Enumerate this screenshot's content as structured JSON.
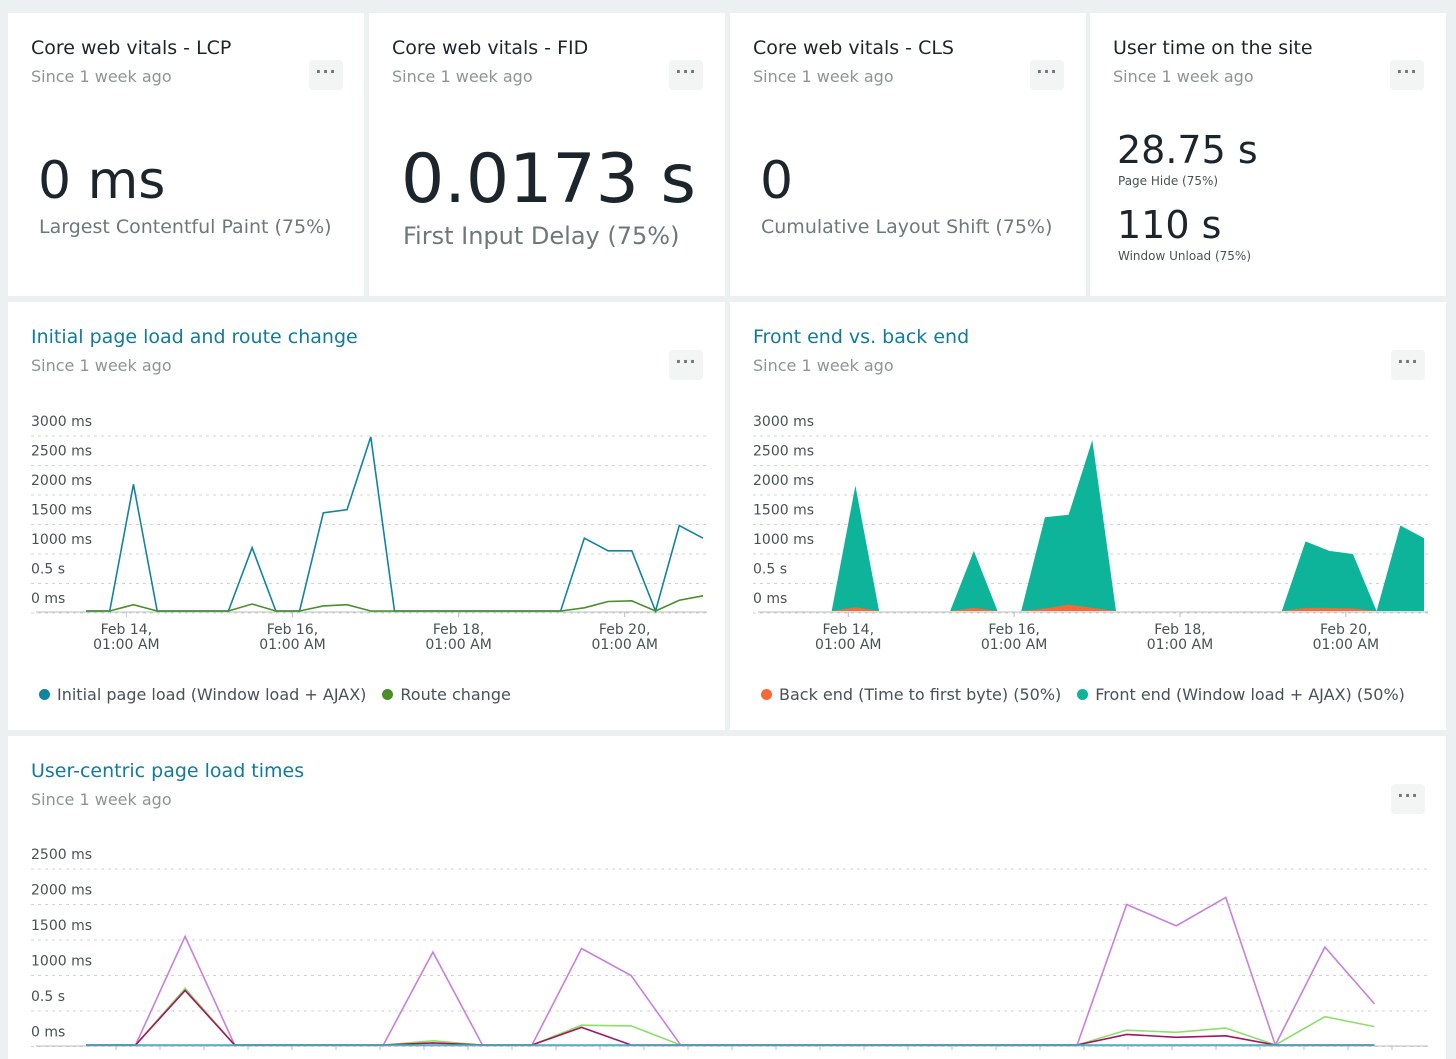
{
  "colors": {
    "title_link": "#0f7b9e",
    "initial_load": "#11849f",
    "route_change": "#4a8f2a",
    "back_end": "#f76937",
    "front_end": "#0eb49a",
    "uc_purple": "#c97fde",
    "uc_green": "#8ce06a",
    "uc_magenta": "#a8125e",
    "uc_teal": "#3aaec2",
    "grid": "#d0d4d5"
  },
  "cards": {
    "lcp": {
      "title": "Core web vitals - LCP",
      "since": "Since 1 week ago",
      "value": "0 ms",
      "label": "Largest Contentful Paint (75%)",
      "menu": "···"
    },
    "fid": {
      "title": "Core web vitals - FID",
      "since": "Since 1 week ago",
      "value": "0.0173 s",
      "label": "First Input Delay (75%)",
      "menu": "···"
    },
    "cls": {
      "title": "Core web vitals - CLS",
      "since": "Since 1 week ago",
      "value": "0",
      "label": "Cumulative Layout Shift (75%)",
      "menu": "···"
    },
    "time": {
      "title": "User time on the site",
      "since": "Since 1 week ago",
      "value1": "28.75 s",
      "label1": "Page Hide (75%)",
      "value2": "110 s",
      "label2": "Window Unload (75%)",
      "menu": "···"
    }
  },
  "panels": {
    "initial": {
      "title": "Initial page load and route change",
      "since": "Since 1 week ago",
      "menu": "···"
    },
    "fevsbe": {
      "title": "Front end vs. back end",
      "since": "Since 1 week ago",
      "menu": "···"
    },
    "usercentric": {
      "title": "User-centric page load times",
      "since": "Since 1 week ago",
      "menu": "···"
    }
  },
  "chart_data": [
    {
      "type": "line",
      "title": "Initial page load and route change",
      "y_ticks": [
        "3000 ms",
        "2500 ms",
        "2000 ms",
        "1500 ms",
        "1000 ms",
        "0.5 s",
        "0 ms"
      ],
      "x_ticks": [
        [
          "Feb 14,",
          "01:00 AM"
        ],
        [
          "Feb 16,",
          "01:00 AM"
        ],
        [
          "Feb 18,",
          "01:00 AM"
        ],
        [
          "Feb 20,",
          "01:00 AM"
        ]
      ],
      "ylim": [
        0,
        3000
      ],
      "x_index_range": [
        0,
        26
      ],
      "x_tick_index": [
        1.7,
        8.7,
        15.7,
        22.7
      ],
      "series": [
        {
          "name": "Initial page load (Window load + AJAX)",
          "color_key": "initial_load",
          "values": [
            0,
            0,
            2000,
            0,
            0,
            0,
            0,
            1000,
            0,
            0,
            1550,
            1600,
            2750,
            0,
            0,
            0,
            0,
            0,
            0,
            0,
            0,
            1150,
            950,
            950,
            0,
            1350,
            1150
          ]
        },
        {
          "name": "Route change",
          "color_key": "route_change",
          "values": [
            0,
            0,
            100,
            0,
            0,
            0,
            0,
            110,
            0,
            0,
            80,
            100,
            0,
            0,
            0,
            0,
            0,
            0,
            0,
            0,
            0,
            50,
            150,
            160,
            0,
            170,
            240
          ]
        }
      ]
    },
    {
      "type": "area",
      "title": "Front end vs. back end",
      "y_ticks": [
        "3000 ms",
        "2500 ms",
        "2000 ms",
        "1500 ms",
        "1000 ms",
        "0.5 s",
        "0 ms"
      ],
      "x_ticks": [
        [
          "Feb 14,",
          "01:00 AM"
        ],
        [
          "Feb 16,",
          "01:00 AM"
        ],
        [
          "Feb 18,",
          "01:00 AM"
        ],
        [
          "Feb 20,",
          "01:00 AM"
        ]
      ],
      "ylim": [
        0,
        3000
      ],
      "x_index_range": [
        0,
        26
      ],
      "x_tick_index": [
        1.7,
        8.7,
        15.7,
        22.7
      ],
      "series": [
        {
          "name": "Back end (Time to first byte) (50%)",
          "color_key": "back_end",
          "values": [
            0,
            0,
            60,
            0,
            0,
            0,
            0,
            50,
            0,
            0,
            40,
            100,
            50,
            0,
            0,
            0,
            0,
            0,
            0,
            0,
            0,
            50,
            50,
            40,
            0,
            0,
            0
          ]
        },
        {
          "name": "Front end (Window load + AJAX) (50%)",
          "color_key": "front_end",
          "values": [
            0,
            0,
            1980,
            0,
            0,
            0,
            0,
            950,
            0,
            0,
            1480,
            1520,
            2700,
            0,
            0,
            0,
            0,
            0,
            0,
            0,
            0,
            1100,
            950,
            900,
            0,
            1350,
            1150
          ]
        }
      ]
    },
    {
      "type": "line",
      "title": "User-centric page load times",
      "y_ticks": [
        "2500 ms",
        "2000 ms",
        "1500 ms",
        "1000 ms",
        "0.5 s",
        "0 ms"
      ],
      "x_ticks": [],
      "ylim": [
        -200,
        2500
      ],
      "x_index_range": [
        0,
        27
      ],
      "series": [
        {
          "color_key": "uc_purple",
          "values": [
            -200,
            -200,
            1550,
            -200,
            -200,
            -200,
            -200,
            1330,
            -200,
            -200,
            1380,
            1000,
            -200,
            -200,
            -200,
            -200,
            -200,
            -200,
            -200,
            -200,
            -200,
            2000,
            1700,
            2100,
            -200,
            1400,
            600
          ]
        },
        {
          "color_key": "uc_green",
          "values": [
            -200,
            -200,
            820,
            -200,
            -200,
            -200,
            -200,
            80,
            -200,
            -200,
            300,
            290,
            -200,
            -200,
            -200,
            -200,
            -200,
            -200,
            -200,
            -200,
            -200,
            230,
            200,
            260,
            -200,
            420,
            280
          ]
        },
        {
          "color_key": "uc_magenta",
          "values": [
            -200,
            -200,
            790,
            -200,
            -200,
            -200,
            -200,
            50,
            -200,
            -200,
            270,
            -200,
            -200,
            -200,
            -200,
            -200,
            -200,
            -200,
            -200,
            -200,
            -200,
            170,
            130,
            150,
            -200,
            -200,
            -200
          ]
        },
        {
          "color_key": "uc_teal",
          "values": [
            -200,
            -200,
            -200,
            -200,
            -200,
            -200,
            -200,
            -200,
            -200,
            -200,
            -200,
            -200,
            -200,
            -200,
            -200,
            -200,
            -200,
            -200,
            -200,
            -200,
            -200,
            -200,
            -200,
            -200,
            -200,
            -200,
            -200
          ]
        }
      ]
    }
  ]
}
